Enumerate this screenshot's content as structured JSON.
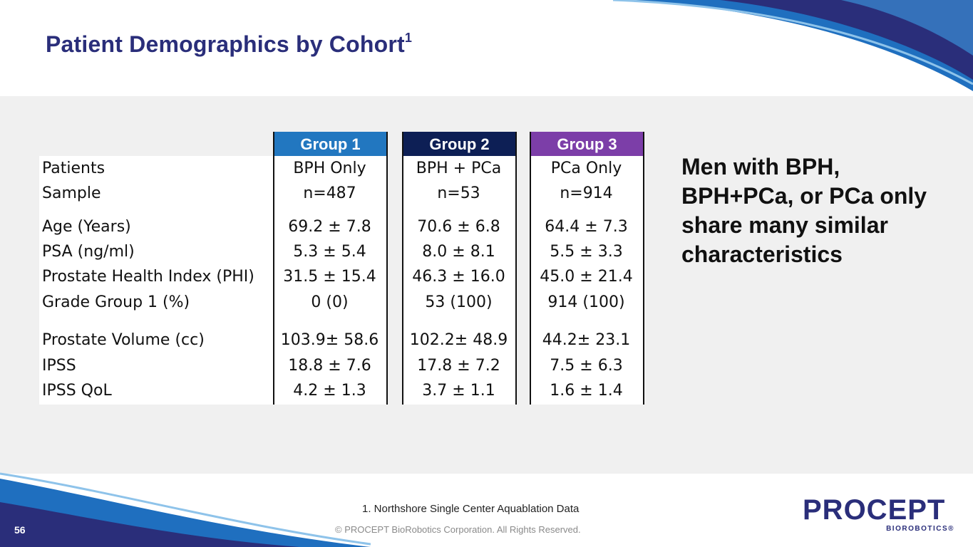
{
  "slide": {
    "title": "Patient Demographics by Cohort",
    "title_sup": "1",
    "page_number": "56"
  },
  "table": {
    "groups": [
      {
        "label": "Group 1",
        "color": "#2277c0"
      },
      {
        "label": "Group 2",
        "color": "#0d1f55"
      },
      {
        "label": "Group 3",
        "color": "#7c3ea8"
      }
    ],
    "rows": [
      {
        "label": "Patients",
        "values": [
          "BPH Only",
          "BPH + PCa",
          "PCa Only"
        ]
      },
      {
        "label": "Sample",
        "values": [
          "n=487",
          "n=53",
          "n=914"
        ]
      },
      {
        "label": "Age (Years)",
        "values": [
          "69.2 ± 7.8",
          "70.6 ± 6.8",
          "64.4 ± 7.3"
        ]
      },
      {
        "label": "PSA (ng/ml)",
        "values": [
          "5.3 ± 5.4",
          "8.0 ± 8.1",
          "5.5 ± 3.3"
        ]
      },
      {
        "label": "Prostate Health Index (PHI)",
        "values": [
          "31.5 ± 15.4",
          "46.3 ± 16.0",
          "45.0 ± 21.4"
        ]
      },
      {
        "label": "Grade Group 1 (%)",
        "values": [
          "0 (0)",
          "53 (100)",
          "914 (100)"
        ]
      },
      {
        "label": "Prostate Volume (cc)",
        "values": [
          "103.9± 58.6",
          "102.2± 48.9",
          "44.2± 23.1"
        ]
      },
      {
        "label": "IPSS",
        "values": [
          "18.8 ± 7.6",
          "17.8 ± 7.2",
          "7.5 ± 6.3"
        ]
      },
      {
        "label": "IPSS QoL",
        "values": [
          "4.2 ± 1.3",
          "3.7 ± 1.1",
          "1.6 ± 1.4"
        ]
      }
    ]
  },
  "callout": "Men with BPH, BPH+PCa, or PCa only share many similar characteristics",
  "footer": {
    "footnote": "1. Northshore Single Center Aquablation Data",
    "copyright": "© PROCEPT BioRobotics Corporation. All Rights Reserved."
  },
  "logo": {
    "main": "PROCEPT",
    "sub": "BIOROBOTICS®"
  },
  "colors": {
    "brand_navy": "#2a2e7a",
    "brand_blue": "#1f6fbf"
  }
}
